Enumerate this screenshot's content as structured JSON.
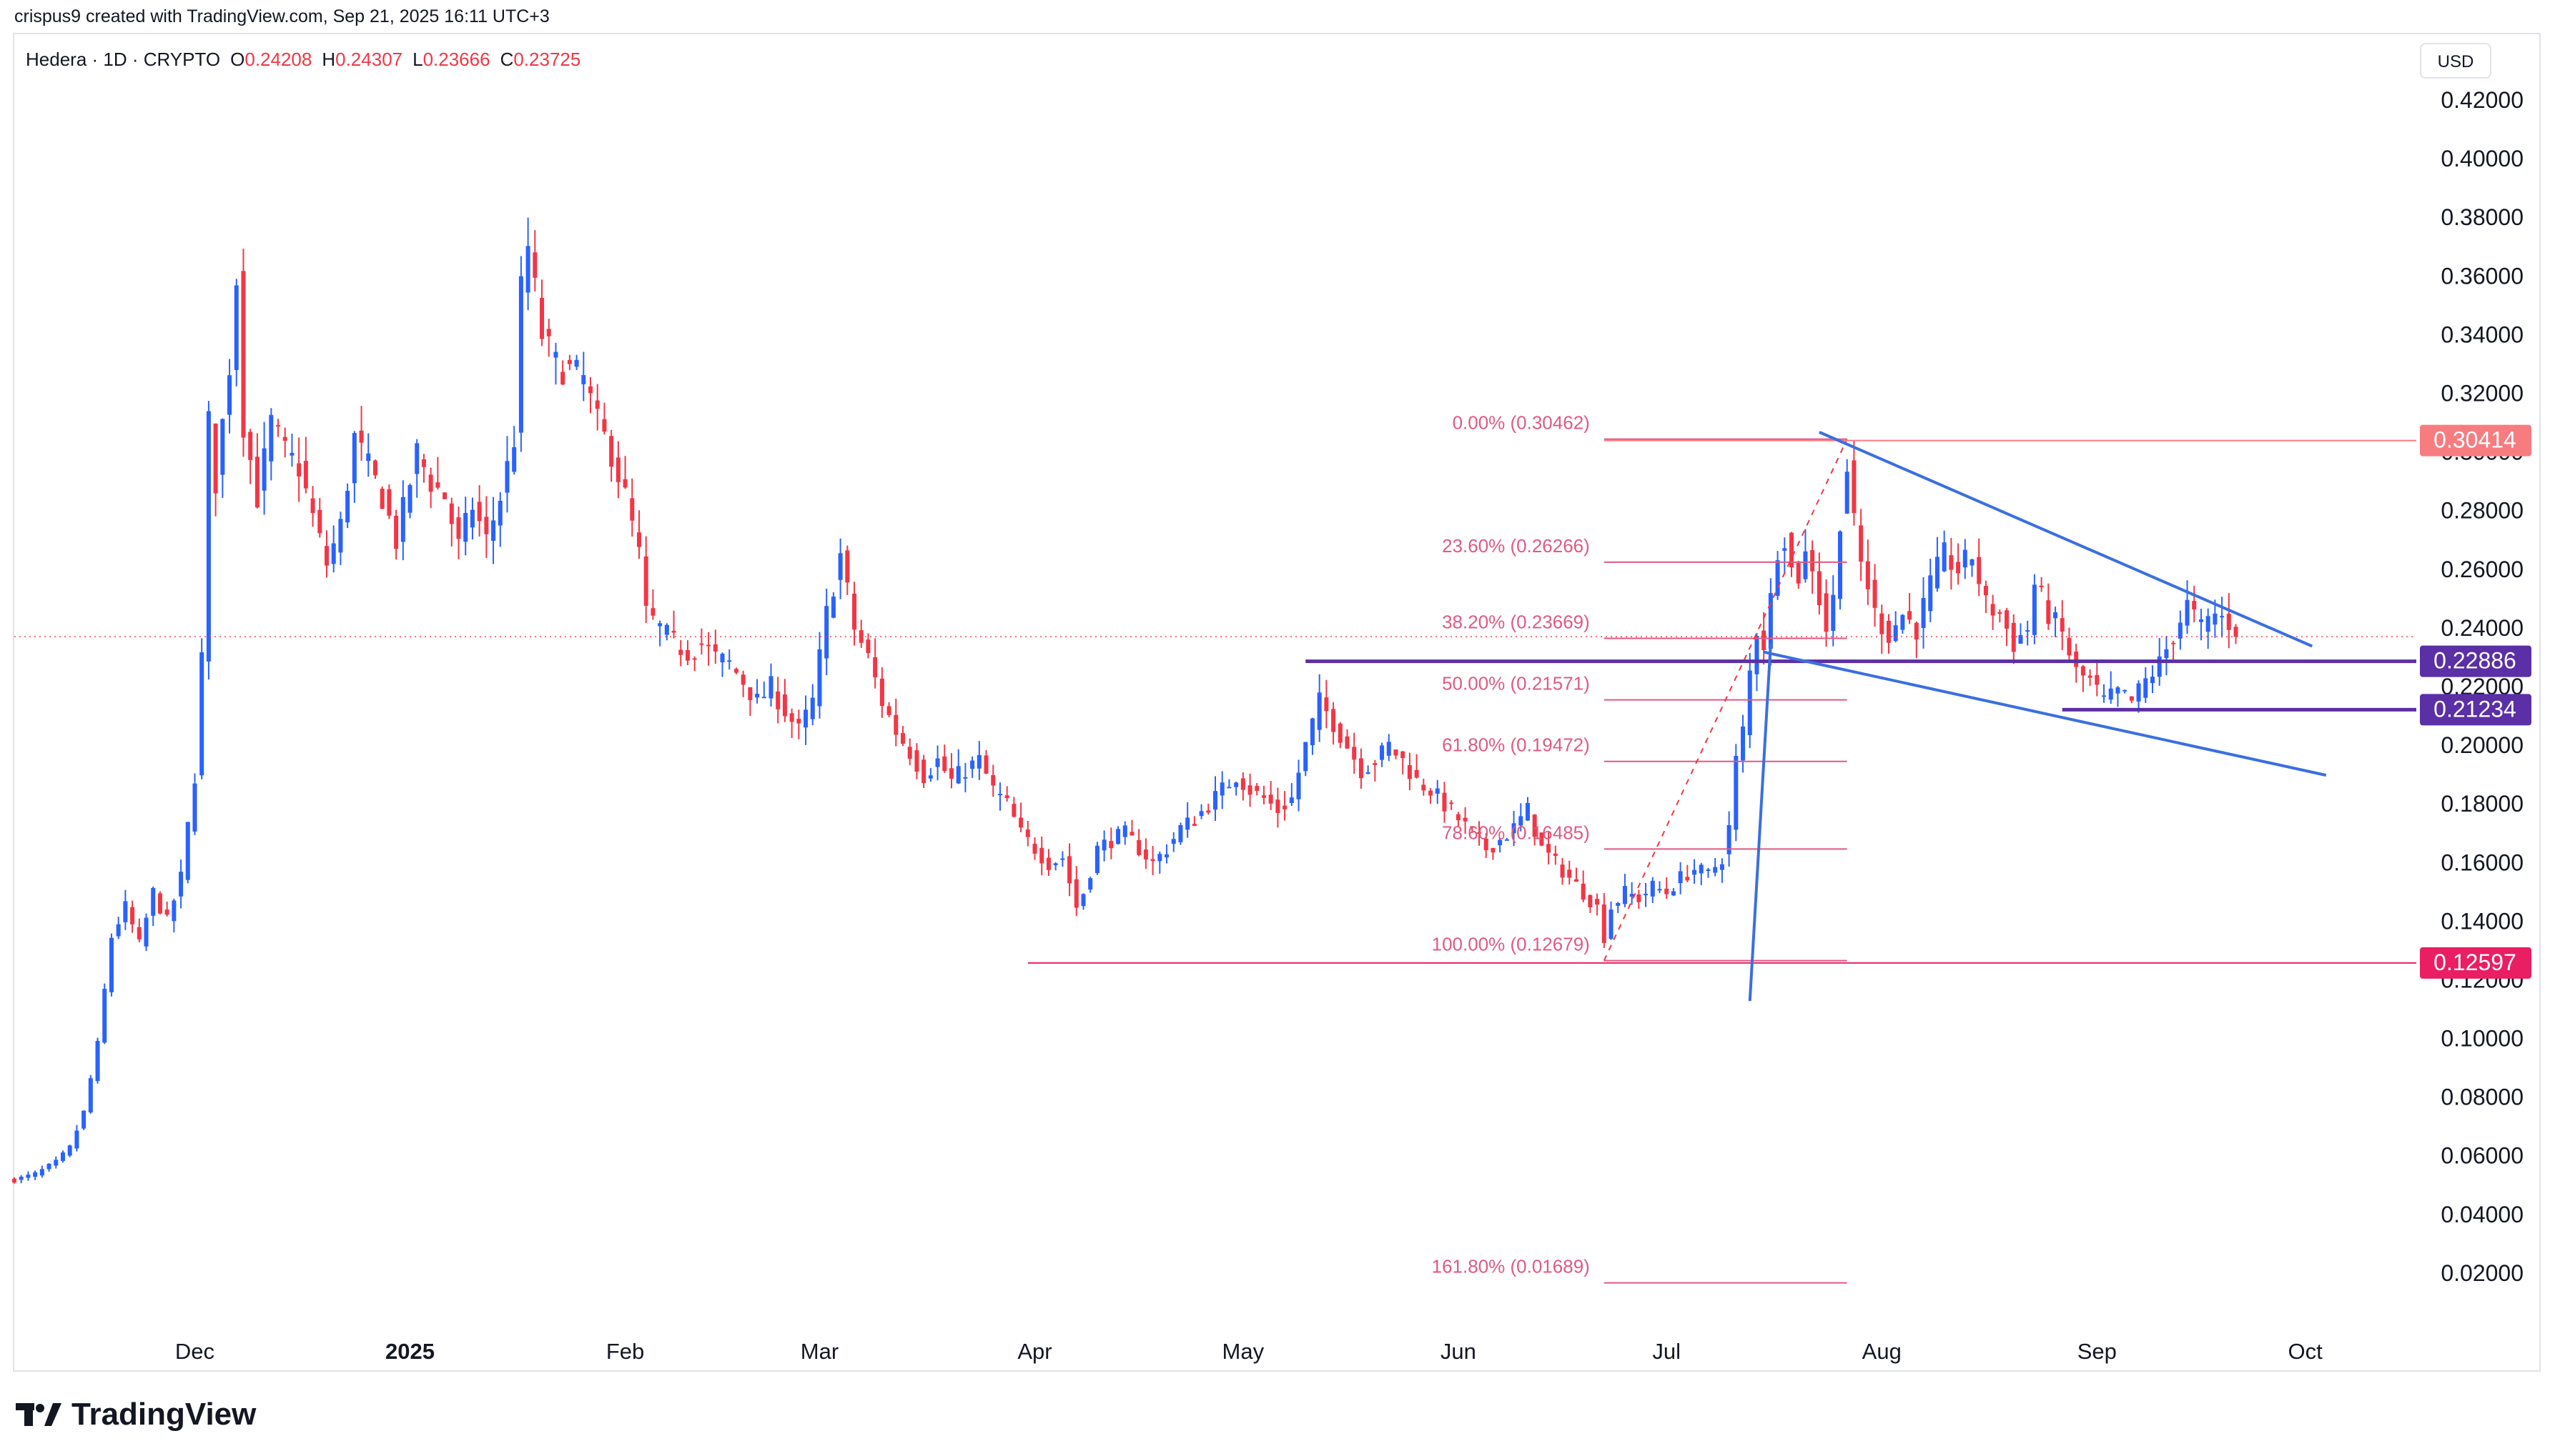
{
  "header": {
    "attribution": "crispus9 created with TradingView.com, Sep 21, 2025 16:11 UTC+3"
  },
  "legend": {
    "symbol": "Hedera · 1D · CRYPTO",
    "open_label": "O",
    "open": "0.24208",
    "high_label": "H",
    "high": "0.24307",
    "low_label": "L",
    "low": "0.23666",
    "close_label": "C",
    "close": "0.23725"
  },
  "currency_button": "USD",
  "brand": {
    "name": "TradingView",
    "icon": "tradingview-logo-icon"
  },
  "colors": {
    "up": "#2962ff",
    "down": "#f23645",
    "fib": "#e05a82",
    "trend": "#3b6fe0",
    "support": "#5b2fa6",
    "grid_text": "#131722"
  },
  "chart_data": {
    "type": "candlestick",
    "ylim": [
      0.0,
      0.43
    ],
    "y_ticks": [
      "0.42000",
      "0.40000",
      "0.38000",
      "0.36000",
      "0.34000",
      "0.32000",
      "0.30000",
      "0.28000",
      "0.26000",
      "0.24000",
      "0.22000",
      "0.20000",
      "0.18000",
      "0.16000",
      "0.14000",
      "0.12000",
      "0.10000",
      "0.08000",
      "0.06000",
      "0.04000",
      "0.02000"
    ],
    "y_tick_values": [
      0.42,
      0.4,
      0.38,
      0.36,
      0.34,
      0.32,
      0.3,
      0.28,
      0.26,
      0.24,
      0.22,
      0.2,
      0.18,
      0.16,
      0.14,
      0.12,
      0.1,
      0.08,
      0.06,
      0.04,
      0.02
    ],
    "x_range": [
      "2024-11-05",
      "2025-10-17"
    ],
    "x_ticks": [
      {
        "label": "Dec",
        "date": "2024-12-01",
        "bold": false
      },
      {
        "label": "2025",
        "date": "2025-01-01",
        "bold": true
      },
      {
        "label": "Feb",
        "date": "2025-02-01",
        "bold": false
      },
      {
        "label": "Mar",
        "date": "2025-03-01",
        "bold": false
      },
      {
        "label": "Apr",
        "date": "2025-04-01",
        "bold": false
      },
      {
        "label": "May",
        "date": "2025-05-01",
        "bold": false
      },
      {
        "label": "Jun",
        "date": "2025-06-01",
        "bold": false
      },
      {
        "label": "Jul",
        "date": "2025-07-01",
        "bold": false
      },
      {
        "label": "Aug",
        "date": "2025-08-01",
        "bold": false
      },
      {
        "label": "Sep",
        "date": "2025-09-01",
        "bold": false
      },
      {
        "label": "Oct",
        "date": "2025-10-01",
        "bold": false
      }
    ],
    "close_path": [
      [
        "2024-11-05",
        0.052
      ],
      [
        "2024-11-08",
        0.054
      ],
      [
        "2024-11-11",
        0.058
      ],
      [
        "2024-11-13",
        0.063
      ],
      [
        "2024-11-15",
        0.075
      ],
      [
        "2024-11-17",
        0.098
      ],
      [
        "2024-11-19",
        0.135
      ],
      [
        "2024-11-21",
        0.145
      ],
      [
        "2024-11-23",
        0.132
      ],
      [
        "2024-11-25",
        0.15
      ],
      [
        "2024-11-27",
        0.14
      ],
      [
        "2024-11-29",
        0.155
      ],
      [
        "2024-12-01",
        0.19
      ],
      [
        "2024-12-02",
        0.23
      ],
      [
        "2024-12-03",
        0.31
      ],
      [
        "2024-12-04",
        0.29
      ],
      [
        "2024-12-06",
        0.33
      ],
      [
        "2024-12-07",
        0.36
      ],
      [
        "2024-12-08",
        0.31
      ],
      [
        "2024-12-10",
        0.285
      ],
      [
        "2024-12-12",
        0.31
      ],
      [
        "2024-12-14",
        0.3
      ],
      [
        "2024-12-16",
        0.295
      ],
      [
        "2024-12-18",
        0.278
      ],
      [
        "2024-12-20",
        0.262
      ],
      [
        "2024-12-22",
        0.275
      ],
      [
        "2024-12-24",
        0.305
      ],
      [
        "2024-12-26",
        0.295
      ],
      [
        "2024-12-28",
        0.285
      ],
      [
        "2024-12-30",
        0.27
      ],
      [
        "2025-01-02",
        0.3
      ],
      [
        "2025-01-04",
        0.29
      ],
      [
        "2025-01-06",
        0.285
      ],
      [
        "2025-01-08",
        0.268
      ],
      [
        "2025-01-10",
        0.282
      ],
      [
        "2025-01-12",
        0.27
      ],
      [
        "2025-01-14",
        0.285
      ],
      [
        "2025-01-16",
        0.305
      ],
      [
        "2025-01-17",
        0.355
      ],
      [
        "2025-01-18",
        0.37
      ],
      [
        "2025-01-20",
        0.34
      ],
      [
        "2025-01-22",
        0.33
      ],
      [
        "2025-01-24",
        0.328
      ],
      [
        "2025-01-26",
        0.325
      ],
      [
        "2025-01-28",
        0.31
      ],
      [
        "2025-01-30",
        0.3
      ],
      [
        "2025-02-01",
        0.285
      ],
      [
        "2025-02-03",
        0.265
      ],
      [
        "2025-02-04",
        0.245
      ],
      [
        "2025-02-06",
        0.24
      ],
      [
        "2025-02-08",
        0.235
      ],
      [
        "2025-02-10",
        0.232
      ],
      [
        "2025-02-12",
        0.235
      ],
      [
        "2025-02-14",
        0.23
      ],
      [
        "2025-02-16",
        0.228
      ],
      [
        "2025-02-18",
        0.222
      ],
      [
        "2025-02-20",
        0.215
      ],
      [
        "2025-02-22",
        0.22
      ],
      [
        "2025-02-24",
        0.212
      ],
      [
        "2025-02-26",
        0.205
      ],
      [
        "2025-02-28",
        0.215
      ],
      [
        "2025-03-02",
        0.245
      ],
      [
        "2025-03-04",
        0.265
      ],
      [
        "2025-03-06",
        0.24
      ],
      [
        "2025-03-08",
        0.23
      ],
      [
        "2025-03-10",
        0.215
      ],
      [
        "2025-03-12",
        0.205
      ],
      [
        "2025-03-14",
        0.198
      ],
      [
        "2025-03-16",
        0.19
      ],
      [
        "2025-03-18",
        0.195
      ],
      [
        "2025-03-20",
        0.188
      ],
      [
        "2025-03-22",
        0.192
      ],
      [
        "2025-03-24",
        0.195
      ],
      [
        "2025-03-26",
        0.185
      ],
      [
        "2025-03-28",
        0.18
      ],
      [
        "2025-03-30",
        0.17
      ],
      [
        "2025-04-01",
        0.165
      ],
      [
        "2025-04-03",
        0.16
      ],
      [
        "2025-04-05",
        0.162
      ],
      [
        "2025-04-07",
        0.145
      ],
      [
        "2025-04-08",
        0.15
      ],
      [
        "2025-04-10",
        0.165
      ],
      [
        "2025-04-12",
        0.168
      ],
      [
        "2025-04-14",
        0.17
      ],
      [
        "2025-04-16",
        0.165
      ],
      [
        "2025-04-18",
        0.16
      ],
      [
        "2025-04-20",
        0.165
      ],
      [
        "2025-04-22",
        0.172
      ],
      [
        "2025-04-24",
        0.175
      ],
      [
        "2025-04-26",
        0.18
      ],
      [
        "2025-04-28",
        0.185
      ],
      [
        "2025-04-30",
        0.19
      ],
      [
        "2025-05-02",
        0.185
      ],
      [
        "2025-05-04",
        0.182
      ],
      [
        "2025-05-06",
        0.178
      ],
      [
        "2025-05-08",
        0.182
      ],
      [
        "2025-05-10",
        0.2
      ],
      [
        "2025-05-12",
        0.215
      ],
      [
        "2025-05-14",
        0.208
      ],
      [
        "2025-05-16",
        0.2
      ],
      [
        "2025-05-18",
        0.192
      ],
      [
        "2025-05-20",
        0.195
      ],
      [
        "2025-05-22",
        0.2
      ],
      [
        "2025-05-24",
        0.195
      ],
      [
        "2025-05-26",
        0.188
      ],
      [
        "2025-05-28",
        0.185
      ],
      [
        "2025-05-30",
        0.18
      ],
      [
        "2025-06-01",
        0.175
      ],
      [
        "2025-06-03",
        0.17
      ],
      [
        "2025-06-05",
        0.165
      ],
      [
        "2025-06-07",
        0.168
      ],
      [
        "2025-06-09",
        0.172
      ],
      [
        "2025-06-11",
        0.178
      ],
      [
        "2025-06-13",
        0.165
      ],
      [
        "2025-06-15",
        0.16
      ],
      [
        "2025-06-17",
        0.155
      ],
      [
        "2025-06-19",
        0.15
      ],
      [
        "2025-06-21",
        0.145
      ],
      [
        "2025-06-22",
        0.135
      ],
      [
        "2025-06-23",
        0.145
      ],
      [
        "2025-06-25",
        0.15
      ],
      [
        "2025-06-27",
        0.148
      ],
      [
        "2025-06-29",
        0.152
      ],
      [
        "2025-07-01",
        0.15
      ],
      [
        "2025-07-03",
        0.155
      ],
      [
        "2025-07-05",
        0.158
      ],
      [
        "2025-07-07",
        0.156
      ],
      [
        "2025-07-09",
        0.162
      ],
      [
        "2025-07-10",
        0.172
      ],
      [
        "2025-07-11",
        0.195
      ],
      [
        "2025-07-12",
        0.205
      ],
      [
        "2025-07-13",
        0.225
      ],
      [
        "2025-07-14",
        0.24
      ],
      [
        "2025-07-15",
        0.235
      ],
      [
        "2025-07-16",
        0.25
      ],
      [
        "2025-07-17",
        0.268
      ],
      [
        "2025-07-18",
        0.272
      ],
      [
        "2025-07-19",
        0.26
      ],
      [
        "2025-07-20",
        0.258
      ],
      [
        "2025-07-21",
        0.265
      ],
      [
        "2025-07-22",
        0.262
      ],
      [
        "2025-07-23",
        0.25
      ],
      [
        "2025-07-24",
        0.24
      ],
      [
        "2025-07-25",
        0.25
      ],
      [
        "2025-07-26",
        0.278
      ],
      [
        "2025-07-27",
        0.295
      ],
      [
        "2025-07-28",
        0.275
      ],
      [
        "2025-07-29",
        0.262
      ],
      [
        "2025-07-30",
        0.255
      ],
      [
        "2025-07-31",
        0.245
      ],
      [
        "2025-08-02",
        0.238
      ],
      [
        "2025-08-04",
        0.245
      ],
      [
        "2025-08-06",
        0.24
      ],
      [
        "2025-08-08",
        0.255
      ],
      [
        "2025-08-10",
        0.265
      ],
      [
        "2025-08-12",
        0.26
      ],
      [
        "2025-08-14",
        0.265
      ],
      [
        "2025-08-16",
        0.248
      ],
      [
        "2025-08-18",
        0.245
      ],
      [
        "2025-08-20",
        0.235
      ],
      [
        "2025-08-22",
        0.24
      ],
      [
        "2025-08-23",
        0.255
      ],
      [
        "2025-08-25",
        0.245
      ],
      [
        "2025-08-27",
        0.238
      ],
      [
        "2025-08-29",
        0.225
      ],
      [
        "2025-08-31",
        0.222
      ],
      [
        "2025-09-02",
        0.215
      ],
      [
        "2025-09-04",
        0.218
      ],
      [
        "2025-09-06",
        0.215
      ],
      [
        "2025-09-08",
        0.222
      ],
      [
        "2025-09-10",
        0.228
      ],
      [
        "2025-09-12",
        0.238
      ],
      [
        "2025-09-14",
        0.248
      ],
      [
        "2025-09-16",
        0.24
      ],
      [
        "2025-09-18",
        0.245
      ],
      [
        "2025-09-20",
        0.242
      ],
      [
        "2025-09-21",
        0.23725
      ]
    ],
    "fib_levels": [
      {
        "label": "0.00% (0.30462)",
        "value": 0.30462
      },
      {
        "label": "23.60% (0.26266)",
        "value": 0.26266
      },
      {
        "label": "38.20% (0.23669)",
        "value": 0.23669
      },
      {
        "label": "50.00% (0.21571)",
        "value": 0.21571
      },
      {
        "label": "61.80% (0.19472)",
        "value": 0.19472
      },
      {
        "label": "78.60% (0.16485)",
        "value": 0.16485
      },
      {
        "label": "100.00% (0.12679)",
        "value": 0.12679
      },
      {
        "label": "161.80% (0.01689)",
        "value": 0.01689
      }
    ],
    "fib_x_range": [
      "2025-06-22",
      "2025-07-27"
    ],
    "fib_swing": [
      [
        "2025-06-22",
        0.12679
      ],
      [
        "2025-07-27",
        0.30462
      ]
    ],
    "price_labels": [
      {
        "text": "0.30414",
        "value": 0.30414,
        "color": "#f77c80",
        "line_from": "2025-06-22"
      },
      {
        "text": "0.22886",
        "value": 0.22886,
        "color": "#5b2fa6",
        "line_from": "2025-05-10"
      },
      {
        "text": "0.21234",
        "value": 0.21234,
        "color": "#5b2fa6",
        "line_from": "2025-08-27"
      },
      {
        "text": "0.12597",
        "value": 0.12597,
        "color": "#e91e63",
        "line_from": "2025-03-31"
      }
    ],
    "current_price": 0.23725,
    "trend_lines": [
      {
        "from": [
          "2025-07-23",
          0.307
        ],
        "to": [
          "2025-10-02",
          0.234
        ]
      },
      {
        "from": [
          "2025-07-15",
          0.232
        ],
        "to": [
          "2025-10-04",
          0.19
        ]
      },
      {
        "from": [
          "2025-07-13",
          0.113
        ],
        "to": [
          "2025-07-16",
          0.235
        ]
      }
    ]
  }
}
